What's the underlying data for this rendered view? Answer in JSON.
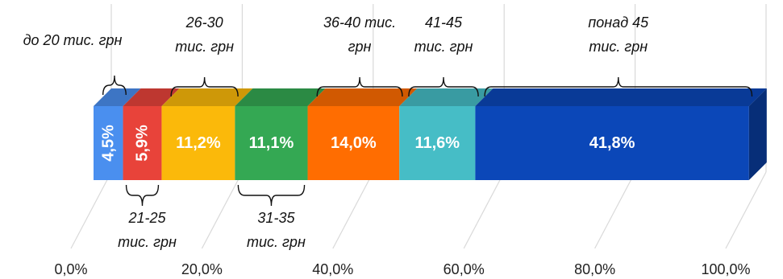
{
  "chart_data": {
    "type": "bar",
    "stacked": true,
    "orientation": "horizontal",
    "style": "3d",
    "xlim": [
      0,
      100
    ],
    "x_ticks": [
      "0,0%",
      "20,0%",
      "40,0%",
      "60,0%",
      "80,0%",
      "100,0%"
    ],
    "grid": true,
    "legend": "none",
    "series": [
      {
        "label": "до 20 тис. грн",
        "label_lines": [
          "до 20 тис. грн"
        ],
        "value": 4.5,
        "value_label": "4,5%",
        "color": "#4a8fef",
        "bracket": "top",
        "rotated": true
      },
      {
        "label": "21-25 тис. грн",
        "label_lines": [
          "21-25",
          "тис. грн"
        ],
        "value": 5.9,
        "value_label": "5,9%",
        "color": "#e8433a",
        "bracket": "bottom",
        "rotated": true
      },
      {
        "label": "26-30 тис. грн",
        "label_lines": [
          "26-30",
          "тис. грн"
        ],
        "value": 11.2,
        "value_label": "11,2%",
        "color": "#fbb90a",
        "bracket": "top",
        "rotated": false
      },
      {
        "label": "31-35 тис. грн",
        "label_lines": [
          "31-35",
          "тис. грн"
        ],
        "value": 11.1,
        "value_label": "11,1%",
        "color": "#34a853",
        "bracket": "bottom",
        "rotated": false
      },
      {
        "label": "36-40 тис. грн",
        "label_lines": [
          "36-40 тис.",
          "грн"
        ],
        "value": 14.0,
        "value_label": "14,0%",
        "color": "#ff6d01",
        "bracket": "top",
        "rotated": false
      },
      {
        "label": "41-45 тис. грн",
        "label_lines": [
          "41-45",
          "тис. грн"
        ],
        "value": 11.6,
        "value_label": "11,6%",
        "color": "#46bdc6",
        "bracket": "top",
        "rotated": false
      },
      {
        "label": "понад 45 тис. грн",
        "label_lines": [
          "понад 45",
          "тис. грн"
        ],
        "value": 41.8,
        "value_label": "41,8%",
        "color": "#0b47b8",
        "bracket": "top",
        "rotated": false
      }
    ]
  }
}
